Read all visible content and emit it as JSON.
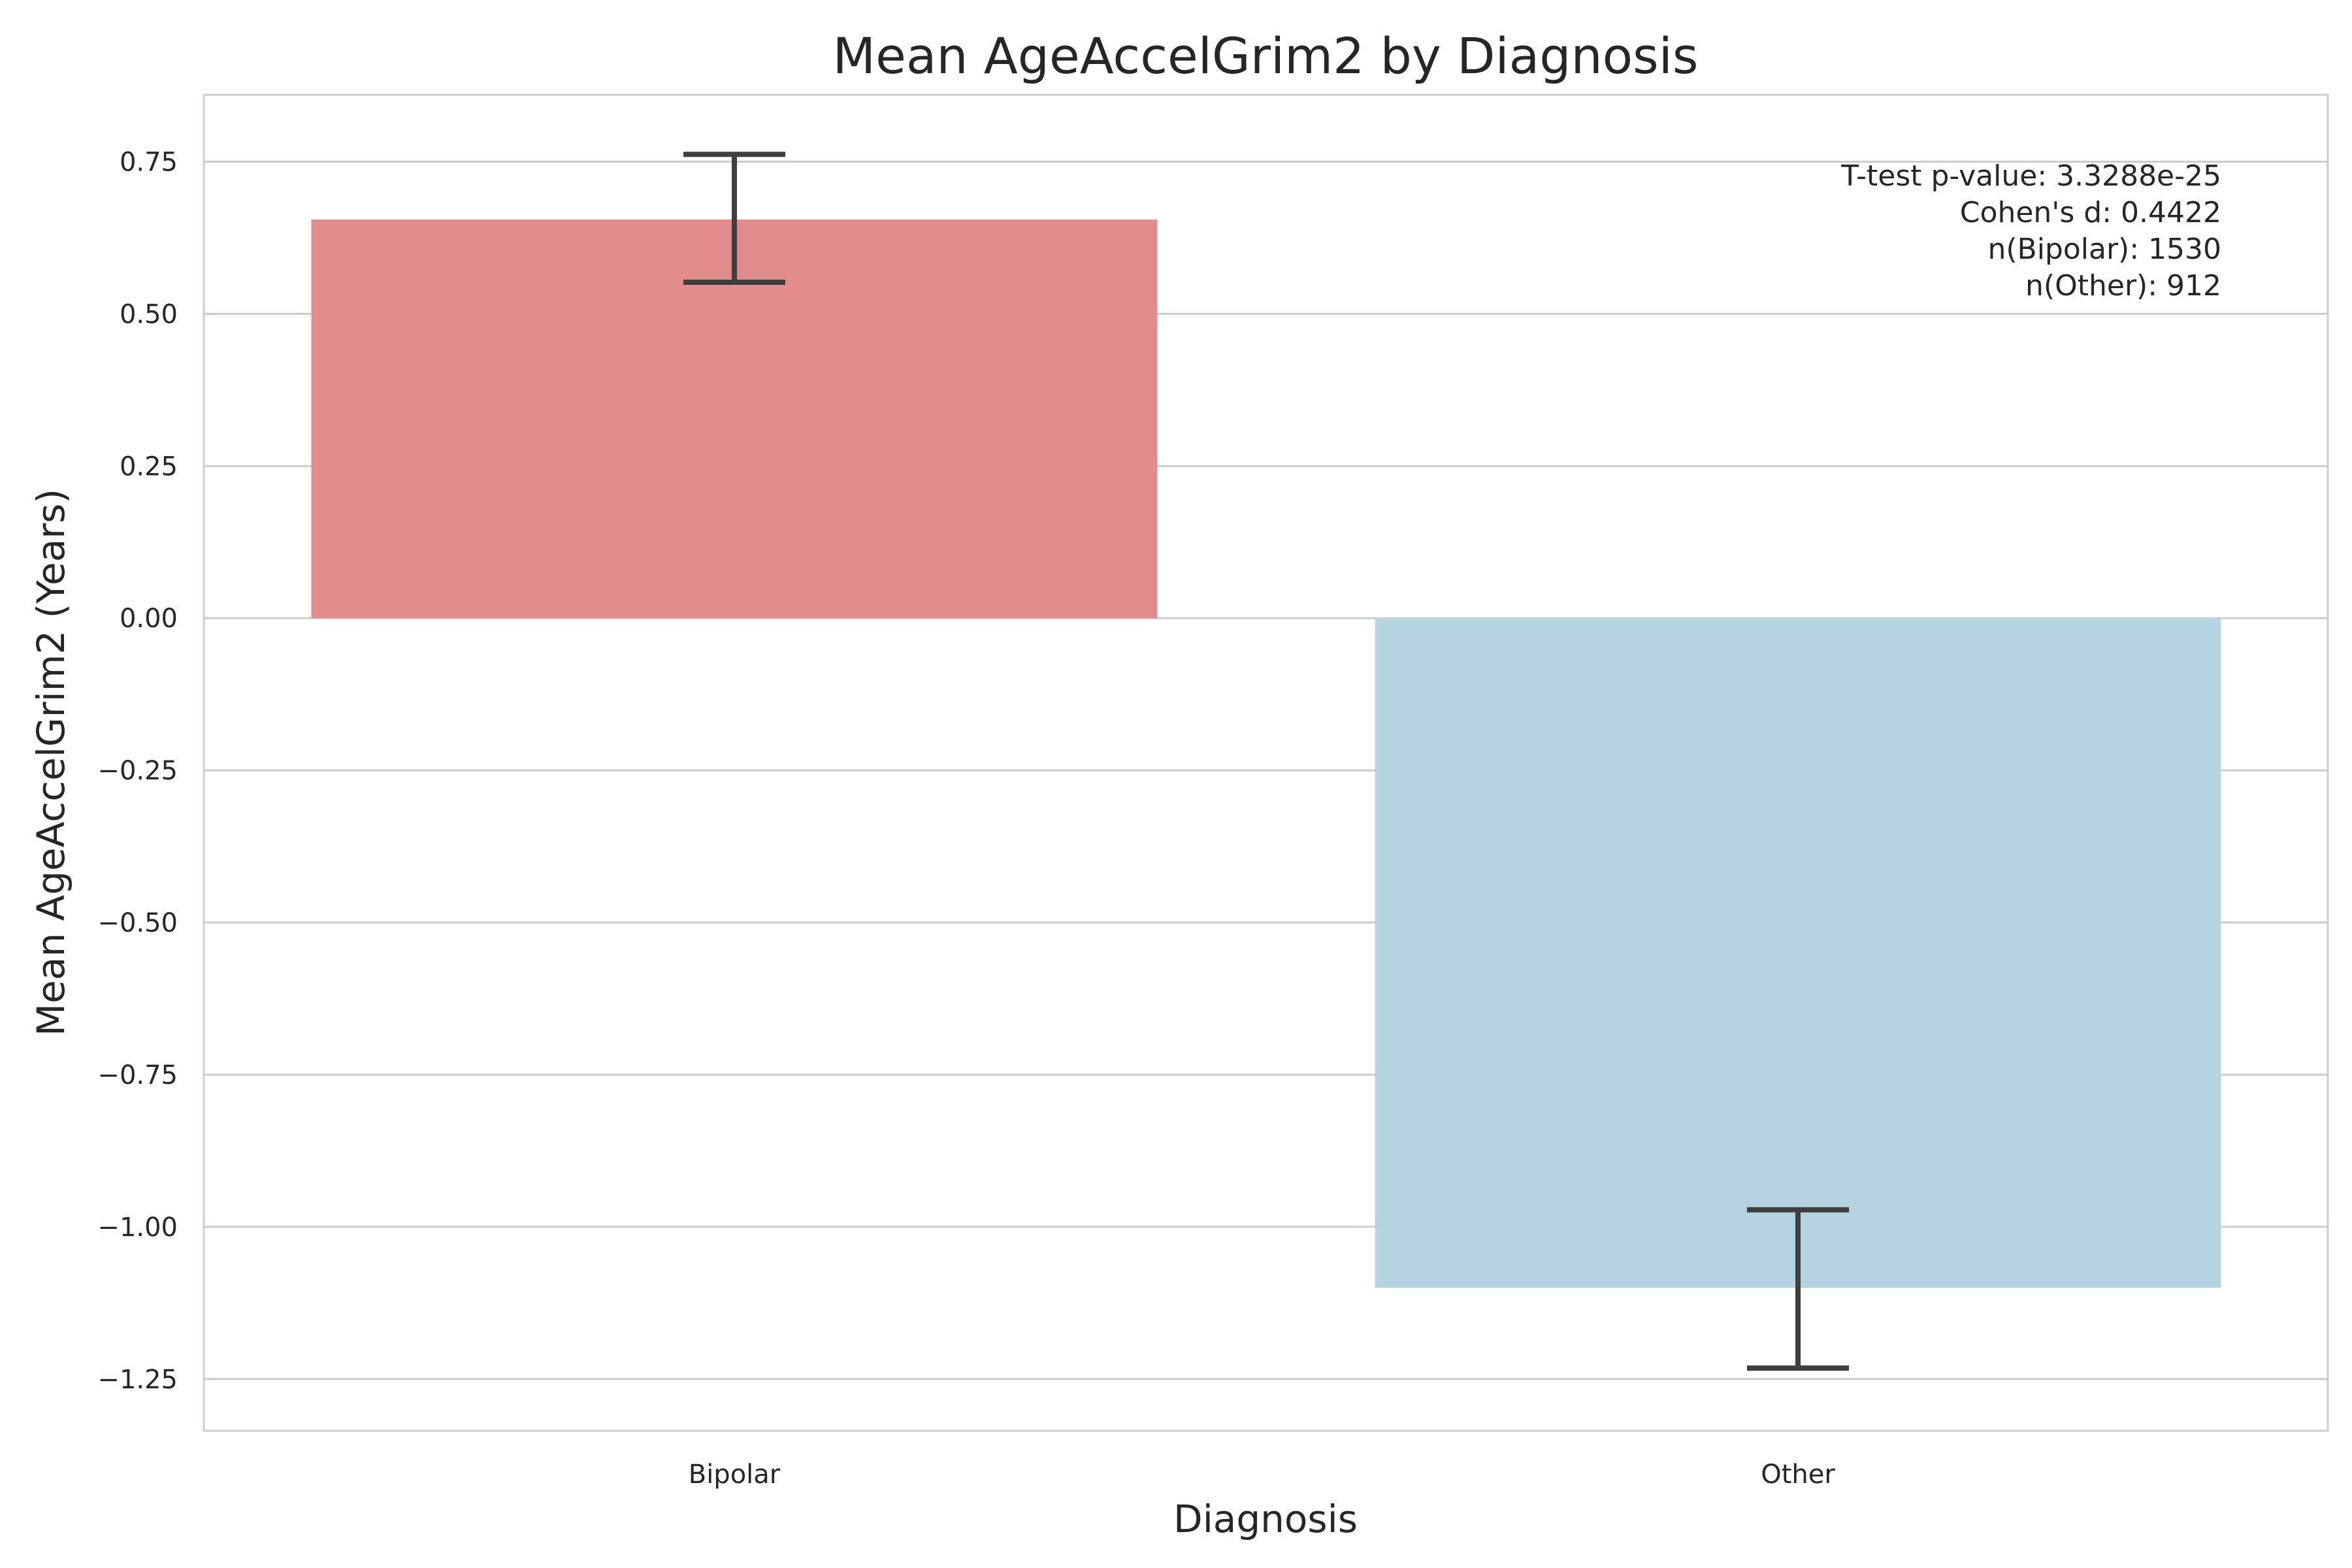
{
  "chart_data": {
    "type": "bar",
    "title": "Mean AgeAccelGrim2 by Diagnosis",
    "xlabel": "Diagnosis",
    "ylabel": "Mean AgeAccelGrim2 (Years)",
    "categories": [
      "Bipolar",
      "Other"
    ],
    "values": [
      0.655,
      -1.1
    ],
    "error_bars": [
      {
        "category": "Bipolar",
        "low": 0.552,
        "high": 0.762
      },
      {
        "category": "Other",
        "low": -1.232,
        "high": -0.972
      }
    ],
    "colors": [
      "#e28c8d",
      "#b3d4e0"
    ],
    "ylim": [
      -1.335,
      0.86
    ],
    "yticks": [
      0.75,
      0.5,
      0.25,
      0.0,
      -0.25,
      -0.5,
      -0.75,
      -1.0,
      -1.25
    ],
    "ytick_labels": [
      "0.75",
      "0.50",
      "0.25",
      "0.00",
      "−0.25",
      "−0.50",
      "−0.75",
      "−1.00",
      "−1.25"
    ],
    "grid": true,
    "annotation_lines": [
      "T-test p-value: 3.3288e-25",
      "Cohen's d: 0.4422",
      "n(Bipolar): 1530",
      "n(Other): 912"
    ],
    "annotation_position": "top-right"
  }
}
